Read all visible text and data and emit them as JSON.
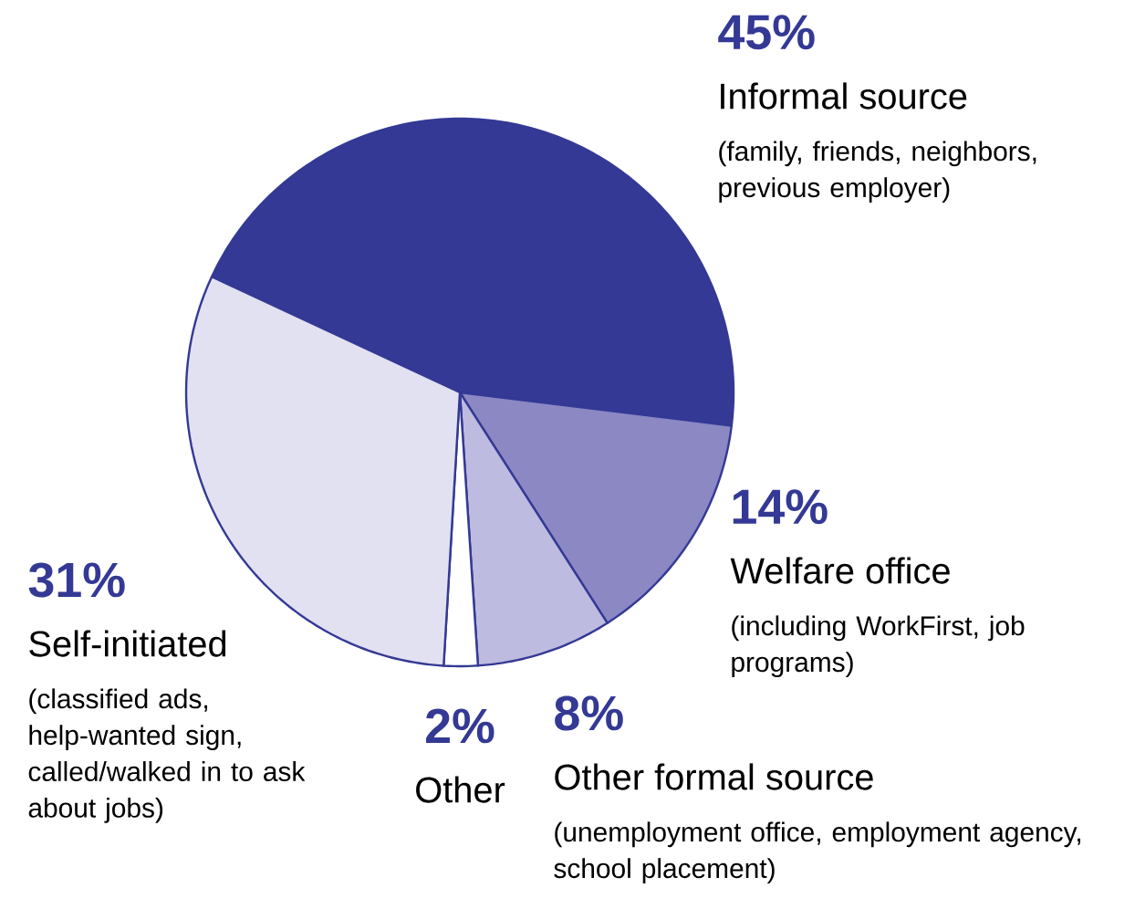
{
  "chart_data": {
    "type": "pie",
    "categories": [
      "Informal source",
      "Welfare office",
      "Other formal source",
      "Other",
      "Self-initiated"
    ],
    "values": [
      45,
      14,
      8,
      2,
      31
    ],
    "value_labels": [
      "45%",
      "14%",
      "8%",
      "2%",
      "31%"
    ],
    "colors": [
      "#343995",
      "#8b88c4",
      "#bdbbdf",
      "#ffffff",
      "#e1e1f1"
    ],
    "annotations": [
      "(family, friends, neighbors, previous employer)",
      "(including WorkFirst, job programs)",
      "(unemployment office, employment agency, school placement)",
      null,
      "(classified ads, help-wanted sign, called/walked in to ask about jobs)"
    ]
  }
}
